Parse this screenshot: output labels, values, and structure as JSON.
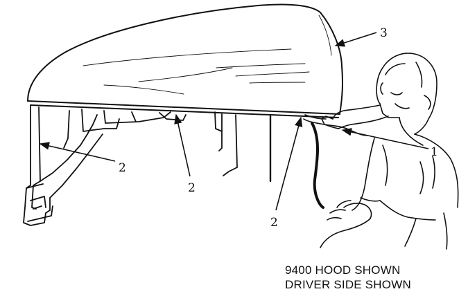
{
  "figure": {
    "callouts": {
      "c1": "1",
      "c2a": "2",
      "c2b": "2",
      "c2c": "2",
      "c3": "3"
    },
    "caption": {
      "line1": "9400 HOOD SHOWN",
      "line2": "DRIVER SIDE SHOWN"
    },
    "ink_color": "#111111",
    "background_color": "#ffffff"
  }
}
